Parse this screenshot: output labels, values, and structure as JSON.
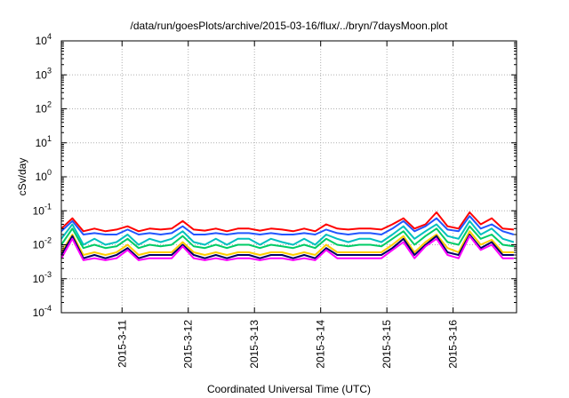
{
  "chart_data": {
    "type": "line",
    "title": "/data/run/goesPlots/archive/2015-03-16/flux/../bryn/7daysMoon.plot",
    "xlabel": "Coordinated Universal Time (UTC)",
    "ylabel": "cSv/day",
    "yscale": "log",
    "ylim": [
      0.0001,
      10000
    ],
    "xlim": [
      "2015-03-10 02:00",
      "2015-03-16 23:00"
    ],
    "grid": true,
    "y_ticks": [
      {
        "base": "10",
        "exp": "-4"
      },
      {
        "base": "10",
        "exp": "-3"
      },
      {
        "base": "10",
        "exp": "-2"
      },
      {
        "base": "10",
        "exp": "-1"
      },
      {
        "base": "10",
        "exp": "0"
      },
      {
        "base": "10",
        "exp": "1"
      },
      {
        "base": "10",
        "exp": "2"
      },
      {
        "base": "10",
        "exp": "3"
      },
      {
        "base": "10",
        "exp": "4"
      }
    ],
    "x_ticks": [
      "2015-3-11",
      "2015-3-12",
      "2015-3-13",
      "2015-3-14",
      "2015-3-15",
      "2015-3-16"
    ],
    "colors": [
      "#ff0000",
      "#2255ff",
      "#00bfbf",
      "#00cc66",
      "#ffcc00",
      "#000066",
      "#ff00ff"
    ],
    "x": [
      "2015-03-10 02:00",
      "2015-03-10 06:00",
      "2015-03-10 10:00",
      "2015-03-10 14:00",
      "2015-03-10 18:00",
      "2015-03-10 22:00",
      "2015-03-11 02:00",
      "2015-03-11 06:00",
      "2015-03-11 10:00",
      "2015-03-11 14:00",
      "2015-03-11 18:00",
      "2015-03-11 22:00",
      "2015-03-12 02:00",
      "2015-03-12 06:00",
      "2015-03-12 10:00",
      "2015-03-12 14:00",
      "2015-03-12 18:00",
      "2015-03-12 22:00",
      "2015-03-13 02:00",
      "2015-03-13 06:00",
      "2015-03-13 10:00",
      "2015-03-13 14:00",
      "2015-03-13 18:00",
      "2015-03-13 22:00",
      "2015-03-14 02:00",
      "2015-03-14 06:00",
      "2015-03-14 10:00",
      "2015-03-14 14:00",
      "2015-03-14 18:00",
      "2015-03-14 22:00",
      "2015-03-15 02:00",
      "2015-03-15 06:00",
      "2015-03-15 10:00",
      "2015-03-15 14:00",
      "2015-03-15 18:00",
      "2015-03-15 22:00",
      "2015-03-16 02:00",
      "2015-03-16 06:00",
      "2015-03-16 10:00",
      "2015-03-16 14:00",
      "2015-03-16 18:00",
      "2015-03-16 22:00"
    ],
    "series": [
      {
        "values": [
          0.03,
          0.06,
          0.025,
          0.03,
          0.025,
          0.028,
          0.035,
          0.025,
          0.03,
          0.028,
          0.03,
          0.05,
          0.028,
          0.026,
          0.03,
          0.025,
          0.03,
          0.03,
          0.026,
          0.03,
          0.028,
          0.025,
          0.03,
          0.025,
          0.04,
          0.03,
          0.028,
          0.03,
          0.03,
          0.028,
          0.04,
          0.06,
          0.03,
          0.04,
          0.09,
          0.035,
          0.03,
          0.09,
          0.04,
          0.06,
          0.03,
          0.028
        ]
      },
      {
        "values": [
          0.025,
          0.05,
          0.02,
          0.022,
          0.02,
          0.02,
          0.028,
          0.02,
          0.022,
          0.02,
          0.022,
          0.035,
          0.02,
          0.02,
          0.022,
          0.02,
          0.022,
          0.022,
          0.02,
          0.022,
          0.02,
          0.02,
          0.022,
          0.02,
          0.028,
          0.022,
          0.02,
          0.022,
          0.022,
          0.02,
          0.03,
          0.05,
          0.025,
          0.035,
          0.06,
          0.028,
          0.025,
          0.07,
          0.03,
          0.04,
          0.025,
          0.02
        ]
      },
      {
        "values": [
          0.015,
          0.04,
          0.01,
          0.015,
          0.01,
          0.012,
          0.02,
          0.01,
          0.015,
          0.012,
          0.015,
          0.025,
          0.012,
          0.01,
          0.015,
          0.01,
          0.015,
          0.015,
          0.01,
          0.015,
          0.012,
          0.01,
          0.015,
          0.01,
          0.02,
          0.015,
          0.012,
          0.015,
          0.015,
          0.012,
          0.02,
          0.035,
          0.015,
          0.025,
          0.04,
          0.018,
          0.015,
          0.05,
          0.02,
          0.03,
          0.015,
          0.012
        ]
      },
      {
        "values": [
          0.01,
          0.03,
          0.008,
          0.01,
          0.008,
          0.009,
          0.015,
          0.008,
          0.01,
          0.009,
          0.01,
          0.018,
          0.009,
          0.008,
          0.01,
          0.008,
          0.01,
          0.01,
          0.008,
          0.01,
          0.009,
          0.008,
          0.01,
          0.008,
          0.015,
          0.01,
          0.009,
          0.01,
          0.01,
          0.009,
          0.015,
          0.025,
          0.01,
          0.018,
          0.03,
          0.012,
          0.01,
          0.035,
          0.015,
          0.02,
          0.01,
          0.009
        ]
      },
      {
        "values": [
          0.006,
          0.02,
          0.005,
          0.006,
          0.005,
          0.006,
          0.01,
          0.005,
          0.006,
          0.006,
          0.006,
          0.012,
          0.006,
          0.005,
          0.006,
          0.005,
          0.006,
          0.006,
          0.005,
          0.006,
          0.006,
          0.005,
          0.006,
          0.005,
          0.01,
          0.006,
          0.006,
          0.006,
          0.006,
          0.006,
          0.01,
          0.018,
          0.006,
          0.012,
          0.02,
          0.008,
          0.006,
          0.025,
          0.01,
          0.014,
          0.006,
          0.006
        ]
      },
      {
        "values": [
          0.005,
          0.018,
          0.004,
          0.005,
          0.004,
          0.005,
          0.008,
          0.004,
          0.005,
          0.005,
          0.005,
          0.01,
          0.005,
          0.004,
          0.005,
          0.004,
          0.005,
          0.005,
          0.004,
          0.005,
          0.005,
          0.004,
          0.005,
          0.004,
          0.008,
          0.005,
          0.005,
          0.005,
          0.005,
          0.005,
          0.008,
          0.015,
          0.005,
          0.01,
          0.018,
          0.006,
          0.005,
          0.02,
          0.008,
          0.012,
          0.005,
          0.005
        ]
      },
      {
        "values": [
          0.004,
          0.015,
          0.0035,
          0.004,
          0.0035,
          0.004,
          0.007,
          0.0035,
          0.004,
          0.004,
          0.004,
          0.009,
          0.004,
          0.0035,
          0.004,
          0.0035,
          0.004,
          0.004,
          0.0035,
          0.004,
          0.004,
          0.0035,
          0.004,
          0.0035,
          0.007,
          0.004,
          0.004,
          0.004,
          0.004,
          0.004,
          0.007,
          0.012,
          0.004,
          0.009,
          0.015,
          0.005,
          0.004,
          0.018,
          0.007,
          0.01,
          0.004,
          0.004
        ]
      }
    ]
  }
}
